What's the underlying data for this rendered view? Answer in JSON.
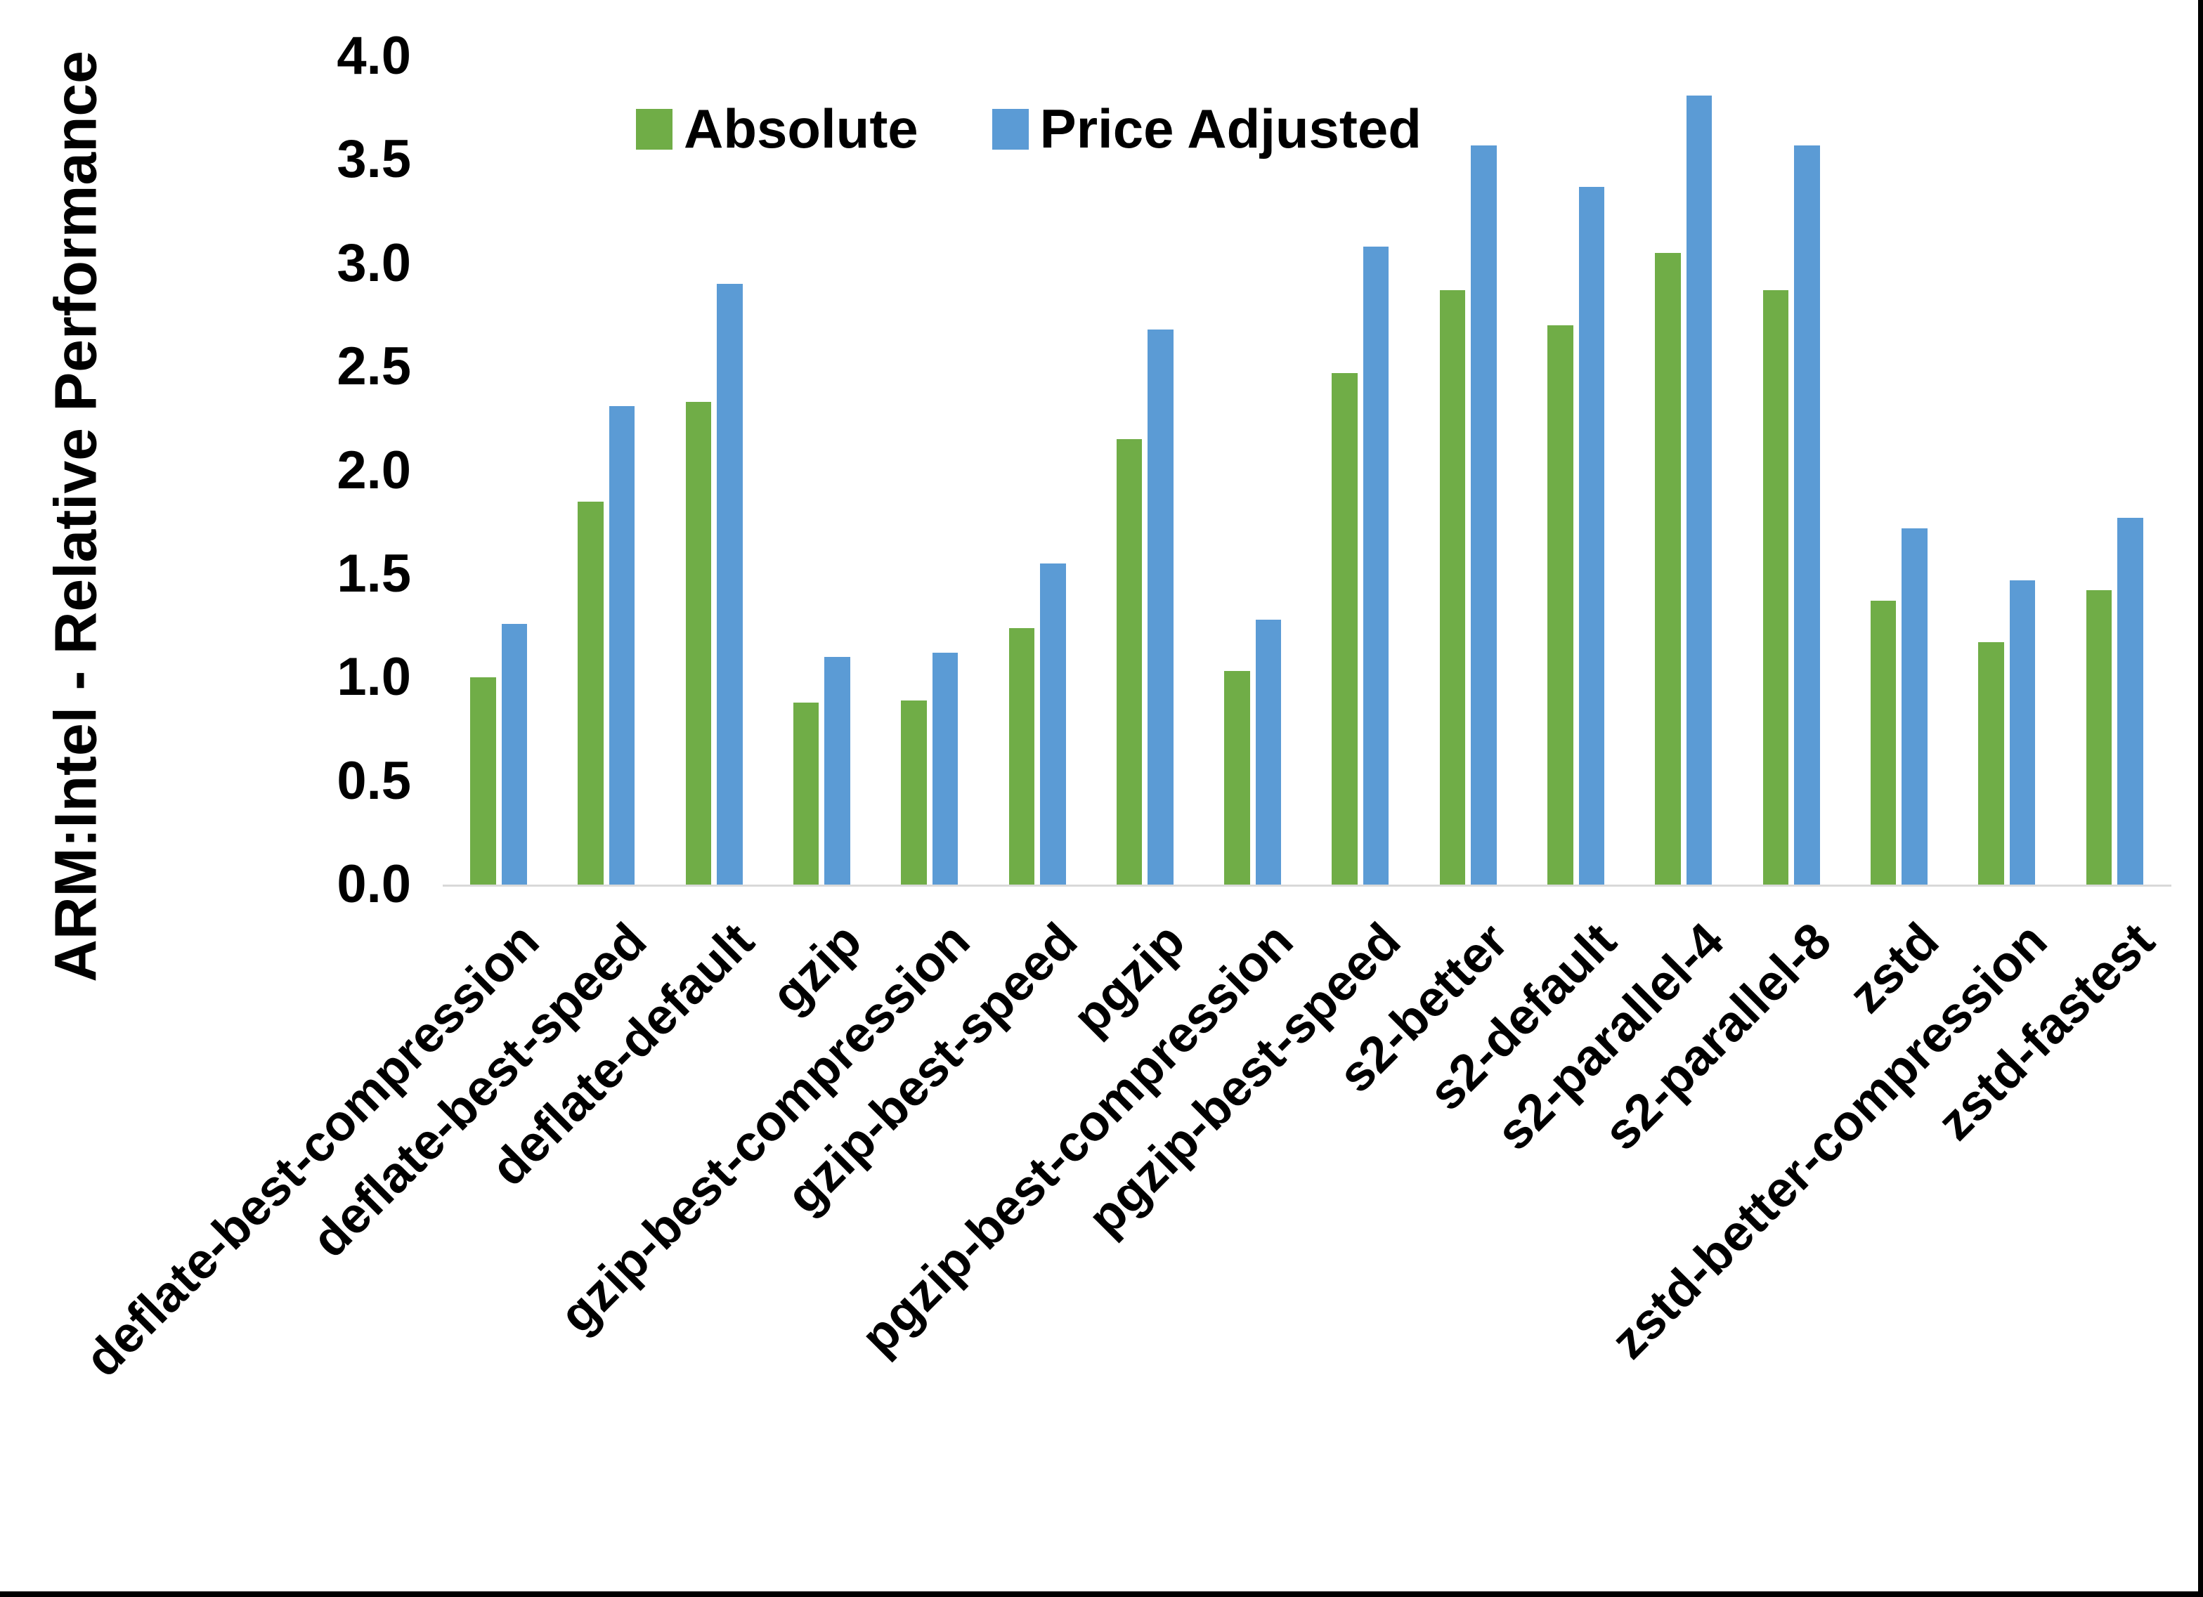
{
  "frame": {
    "background_color": "#ffffff",
    "border_color": "#000000"
  },
  "y_axis": {
    "title": "ARM:Intel - Relative Performance",
    "tick_labels": [
      "0.0",
      "0.5",
      "1.0",
      "1.5",
      "2.0",
      "2.5",
      "3.0",
      "3.5",
      "4.0"
    ],
    "min": 0,
    "max": 4
  },
  "colors": {
    "absolute_green": "#70AD47",
    "price_adjusted_blue": "#5B9BD5",
    "axis_line_gray": "#d9d9d9"
  },
  "chart_data": {
    "type": "bar",
    "title": "",
    "xlabel": "",
    "ylabel": "ARM:Intel - Relative Performance",
    "ylim": [
      0,
      4
    ],
    "y_tick_step": 0.5,
    "grid": false,
    "legend_position": "top",
    "categories": [
      "deflate-best-compression",
      "deflate-best-speed",
      "deflate-default",
      "gzip",
      "gzip-best-compression",
      "gzip-best-speed",
      "pgzip",
      "pgzip-best-compression",
      "pgzip-best-speed",
      "s2-better",
      "s2-default",
      "s2-parallel-4",
      "s2-parallel-8",
      "zstd",
      "zstd-better-compression",
      "zstd-fastest"
    ],
    "series": [
      {
        "name": "Absolute",
        "color": "#70AD47",
        "values": [
          1.0,
          1.85,
          2.33,
          0.88,
          0.89,
          1.24,
          2.15,
          1.03,
          2.47,
          2.87,
          2.7,
          3.05,
          2.87,
          1.37,
          1.17,
          1.42
        ]
      },
      {
        "name": "Price Adjusted",
        "color": "#5B9BD5",
        "values": [
          1.26,
          2.31,
          2.9,
          1.1,
          1.12,
          1.55,
          2.68,
          1.28,
          3.08,
          3.57,
          3.37,
          3.81,
          3.57,
          1.72,
          1.47,
          1.77
        ]
      }
    ]
  }
}
